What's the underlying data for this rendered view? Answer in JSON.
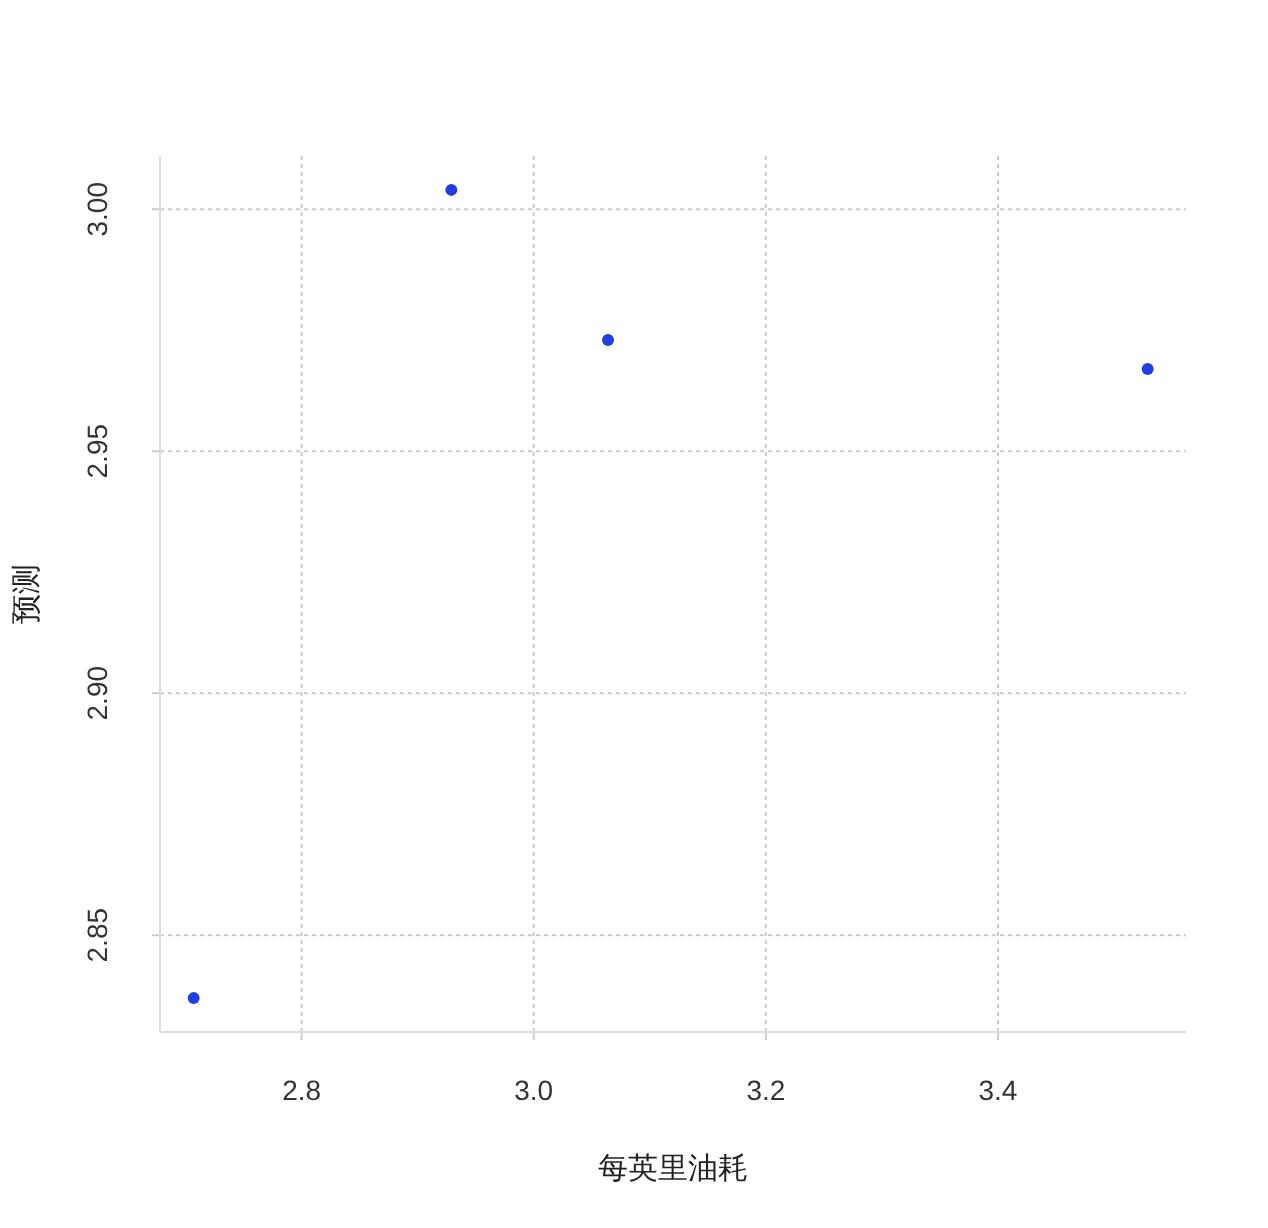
{
  "chart_data": {
    "type": "scatter",
    "xlabel": "每英里油耗",
    "ylabel": "预测",
    "x": [
      2.707,
      2.929,
      3.064,
      3.529
    ],
    "series": [
      {
        "color": "#1f3fe0",
        "values": [
          2.837,
          3.004,
          2.973,
          2.967
        ]
      }
    ],
    "xlim": [
      2.678,
      3.562
    ],
    "ylim": [
      2.83,
      3.011
    ],
    "xticks": [
      {
        "value": 2.8,
        "label": "2.8"
      },
      {
        "value": 3.0,
        "label": "3.0"
      },
      {
        "value": 3.2,
        "label": "3.2"
      },
      {
        "value": 3.4,
        "label": "3.4"
      }
    ],
    "yticks": [
      {
        "value": 2.85,
        "label": "2.85"
      },
      {
        "value": 2.9,
        "label": "2.90"
      },
      {
        "value": 2.95,
        "label": "2.95"
      },
      {
        "value": 3.0,
        "label": "3.00"
      }
    ],
    "grid": true,
    "marker": "circle"
  }
}
